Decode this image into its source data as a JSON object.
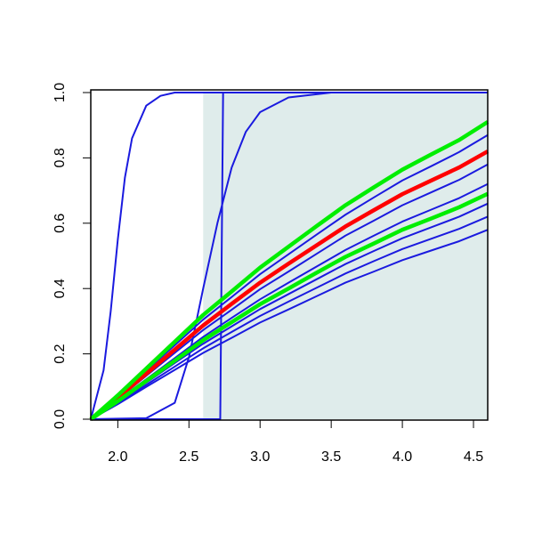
{
  "chart_data": {
    "type": "line",
    "xlim": [
      1.81,
      4.6
    ],
    "ylim": [
      0,
      1
    ],
    "xticks": [
      {
        "value": 2,
        "label": "2.0"
      },
      2.5,
      {
        "value": 3,
        "label": "3.0"
      },
      3.5,
      {
        "value": 4,
        "label": "4.0"
      },
      4.5
    ],
    "yticks": [
      {
        "value": 0,
        "label": "0.0"
      },
      0.2,
      0.4,
      0.6,
      0.8,
      {
        "value": 1,
        "label": "1.0"
      }
    ],
    "shade_from": 2.6,
    "shade_color": "#dfeceb",
    "x": [
      1.81,
      2.0,
      2.2,
      2.4,
      2.6,
      2.8,
      3.0,
      3.2,
      3.4,
      3.6,
      3.8,
      4.0,
      4.2,
      4.4,
      4.6
    ],
    "series": [
      {
        "color": "#1a1adf",
        "x": [
          1.81,
          1.9,
          1.95,
          2.0,
          2.05,
          2.1,
          2.2,
          2.3,
          2.4,
          2.6,
          3.0,
          4.6
        ],
        "values": [
          0,
          0.15,
          0.33,
          0.55,
          0.74,
          0.86,
          0.96,
          0.99,
          1,
          1,
          1,
          1
        ]
      },
      {
        "color": "#1a1adf",
        "x": [
          1.81,
          2.72,
          2.73,
          2.74,
          4.6
        ],
        "values": [
          0,
          0,
          0.5,
          1,
          1
        ]
      },
      {
        "color": "#1a1adf",
        "x": [
          1.81,
          2.2,
          2.4,
          2.5,
          2.6,
          2.7,
          2.8,
          2.9,
          3.0,
          3.2,
          3.5,
          4.6
        ],
        "values": [
          0,
          0.003,
          0.05,
          0.19,
          0.4,
          0.6,
          0.77,
          0.88,
          0.94,
          0.985,
          1,
          1
        ]
      },
      {
        "color": "#1a1adf",
        "values": [
          0,
          0.073,
          0.155,
          0.237,
          0.319,
          0.391,
          0.464,
          0.528,
          0.592,
          0.655,
          0.71,
          0.764,
          0.81,
          0.855,
          0.91
        ]
      },
      {
        "color": "#1a1adf",
        "values": [
          0,
          0.07,
          0.148,
          0.226,
          0.305,
          0.374,
          0.444,
          0.505,
          0.566,
          0.626,
          0.679,
          0.731,
          0.774,
          0.818,
          0.87
        ]
      },
      {
        "color": "#1a1adf",
        "values": [
          0,
          0.062,
          0.133,
          0.203,
          0.273,
          0.335,
          0.398,
          0.452,
          0.507,
          0.562,
          0.608,
          0.655,
          0.694,
          0.733,
          0.78
        ]
      },
      {
        "color": "#1a1adf",
        "values": [
          0,
          0.058,
          0.122,
          0.187,
          0.252,
          0.31,
          0.367,
          0.418,
          0.468,
          0.518,
          0.562,
          0.605,
          0.641,
          0.677,
          0.72
        ]
      },
      {
        "color": "#1a1adf",
        "values": [
          0,
          0.053,
          0.112,
          0.172,
          0.231,
          0.284,
          0.337,
          0.383,
          0.429,
          0.475,
          0.515,
          0.554,
          0.587,
          0.62,
          0.66
        ]
      },
      {
        "color": "#1a1adf",
        "values": [
          0,
          0.05,
          0.105,
          0.161,
          0.217,
          0.267,
          0.316,
          0.36,
          0.403,
          0.446,
          0.484,
          0.521,
          0.552,
          0.583,
          0.62
        ]
      },
      {
        "color": "#1a1adf",
        "values": [
          0,
          0.046,
          0.099,
          0.151,
          0.203,
          0.249,
          0.296,
          0.336,
          0.377,
          0.418,
          0.452,
          0.487,
          0.516,
          0.545,
          0.58
        ]
      },
      {
        "color": "#ff0000",
        "width": 4.5,
        "values": [
          0,
          0.066,
          0.139,
          0.213,
          0.287,
          0.353,
          0.418,
          0.476,
          0.533,
          0.59,
          0.64,
          0.689,
          0.73,
          0.771,
          0.82
        ]
      },
      {
        "color": "#00ee00",
        "width": 4.5,
        "values": [
          0,
          0.055,
          0.117,
          0.179,
          0.242,
          0.297,
          0.352,
          0.4,
          0.449,
          0.497,
          0.538,
          0.58,
          0.614,
          0.649,
          0.69
        ]
      },
      {
        "color": "#00ee00",
        "width": 4.5,
        "values": [
          0,
          0.073,
          0.155,
          0.237,
          0.319,
          0.391,
          0.464,
          0.528,
          0.592,
          0.655,
          0.71,
          0.764,
          0.81,
          0.855,
          0.91
        ]
      }
    ]
  }
}
